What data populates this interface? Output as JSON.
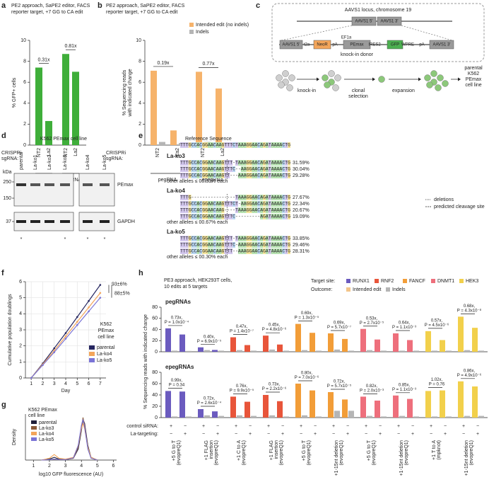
{
  "panel_letters": [
    "a",
    "b",
    "c",
    "d",
    "e",
    "f",
    "g",
    "h"
  ],
  "chart_data": [
    {
      "type": "bar",
      "title_lines": [
        "PE2 approach, SaPE2 editor, FACS",
        "reporter target, +7 GG to CA edit"
      ],
      "ylabel": "% GFP+ cells",
      "row_label": [
        "CRISPRi",
        "sgRNA:"
      ],
      "color": "#3fae3a",
      "ylim": [
        0,
        10
      ],
      "yticks": [
        0,
        2,
        4,
        6,
        8,
        10
      ],
      "groups": [
        {
          "name": "pegRNA",
          "categories": [
            "NT2",
            "La2"
          ],
          "values": [
            7.4,
            2.3
          ],
          "fold": "0.31x"
        },
        {
          "name": "epegRNA",
          "categories": [
            "NT2",
            "La2"
          ],
          "values": [
            8.7,
            7.0
          ],
          "fold": "0.81x"
        }
      ]
    },
    {
      "type": "grouped_bar",
      "title_lines": [
        "PE2 approach, SaPE2 editor, FACS",
        "reporter target, +7 GG to CA edit"
      ],
      "ylabel_lines": [
        "% Sequencing reads",
        "with indicated change"
      ],
      "row_label": [
        "CRISPRi",
        "sgRNA:"
      ],
      "ylim": [
        0,
        10
      ],
      "yticks": [
        0,
        2,
        4,
        6,
        8,
        10
      ],
      "series": [
        {
          "name": "Intended edit (no indels)",
          "color": "#f6b36b"
        },
        {
          "name": "Indels",
          "color": "#b5b5b5"
        }
      ],
      "groups": [
        {
          "name": "pegRNA",
          "categories": [
            "NT2",
            "La2"
          ],
          "series_values": [
            [
              7.1,
              1.4
            ],
            [
              0.3,
              0.2
            ]
          ],
          "fold": "0.19x"
        },
        {
          "name": "epegRNA",
          "categories": [
            "NT2",
            "La2"
          ],
          "series_values": [
            [
              7.0,
              5.4
            ],
            [
              0.3,
              0.2
            ]
          ],
          "fold": "0.77x"
        }
      ]
    },
    {
      "type": "line",
      "xlabel": "Day",
      "ylabel": "Cumulative population doublings",
      "x": [
        1,
        2,
        3,
        4,
        5,
        6,
        7
      ],
      "xlim": [
        0.5,
        7.5
      ],
      "xticks": [
        1,
        2,
        3,
        4,
        5,
        6,
        7
      ],
      "ylim": [
        0,
        6
      ],
      "yticks": [
        0,
        1,
        2,
        3,
        4,
        5,
        6
      ],
      "grid": true,
      "legend_title": [
        "K562",
        "PEmax",
        "cell line"
      ],
      "series": [
        {
          "name": "parental",
          "color": "#262660",
          "values": [
            0,
            0.9,
            1.85,
            2.8,
            3.8,
            4.8,
            5.8
          ]
        },
        {
          "name": "La-ko4",
          "color": "#f3a55a",
          "values": [
            0,
            0.85,
            1.7,
            2.6,
            3.5,
            4.4,
            5.3
          ]
        },
        {
          "name": "La-ko5",
          "color": "#7a74d6",
          "values": [
            0,
            0.8,
            1.6,
            2.45,
            3.3,
            4.15,
            5.0
          ]
        }
      ],
      "annotations": [
        "93±6%",
        "88±5%"
      ]
    },
    {
      "type": "density",
      "xlabel": "log10 GFP fluorescence (AU)",
      "ylabel": "Density",
      "legend_title": [
        "K562 PEmax",
        "cell line"
      ],
      "x": [
        1.5,
        2,
        2.3,
        2.6,
        3,
        3.5,
        3.8,
        4,
        4.1,
        4.2,
        4.4,
        4.6,
        5
      ],
      "xlim": [
        0.5,
        6.2
      ],
      "xticks": [
        1,
        2,
        3,
        4,
        5,
        6
      ],
      "ylim": [
        0,
        2.5
      ],
      "series": [
        {
          "name": "parental",
          "color": "#1f1f3a",
          "values": [
            0,
            0.05,
            0.15,
            0.05,
            0.02,
            0.1,
            0.6,
            1.6,
            2.2,
            2.0,
            0.8,
            0.15,
            0
          ]
        },
        {
          "name": "La-ko3",
          "color": "#8a5a3a",
          "values": [
            0,
            0.02,
            0.05,
            0.03,
            0.02,
            0.1,
            0.7,
            1.8,
            2.3,
            1.9,
            0.7,
            0.1,
            0
          ]
        },
        {
          "name": "La-ko4",
          "color": "#f3a55a",
          "values": [
            0,
            0.1,
            0.3,
            0.1,
            0.05,
            0.15,
            0.8,
            1.7,
            2.0,
            1.7,
            0.7,
            0.15,
            0
          ]
        },
        {
          "name": "La-ko5",
          "color": "#7a74d6",
          "values": [
            0,
            0.02,
            0.05,
            0.03,
            0.02,
            0.12,
            0.8,
            1.9,
            2.2,
            1.8,
            0.6,
            0.1,
            0
          ]
        }
      ]
    },
    {
      "type": "grouped_bar",
      "subtitle": "pegRNAs",
      "ylim": [
        0,
        80
      ],
      "yticks": [
        0,
        20,
        40,
        60,
        80
      ],
      "targets": [
        {
          "edits": [
            {
              "intended": [
                42,
                31
              ],
              "indels": [
                2,
                1.5
              ],
              "fold": "0.73x,",
              "p": "P = 1.0x10⁻⁴"
            },
            {
              "intended": [
                8,
                3.3
              ],
              "indels": [
                3,
                2
              ],
              "fold": "0.40x,",
              "p": "P = 6.9x10⁻⁵"
            }
          ]
        },
        {
          "edits": [
            {
              "intended": [
                26,
                12
              ],
              "indels": [
                3,
                2
              ],
              "fold": "0.47x,",
              "p": "P = 1.4x10⁻⁷"
            },
            {
              "intended": [
                29,
                13
              ],
              "indels": [
                4,
                2
              ],
              "fold": "0.45x,",
              "p": "P = 4.8x10⁻⁶"
            }
          ]
        },
        {
          "edits": [
            {
              "intended": [
                50,
                34
              ],
              "indels": [
                3,
                2
              ],
              "fold": "0.69x,",
              "p": "P = 1.3x10⁻⁵"
            },
            {
              "intended": [
                33,
                23
              ],
              "indels": [
                4,
                2
              ],
              "fold": "0.69x,",
              "p": "P = 5.7x10⁻⁷"
            }
          ]
        },
        {
          "edits": [
            {
              "intended": [
                41,
                22
              ],
              "indels": [
                3,
                2
              ],
              "fold": "0.53x,",
              "p": "P = 2.7x10⁻⁵"
            },
            {
              "intended": [
                33,
                21
              ],
              "indels": [
                2,
                2
              ],
              "fold": "0.64x,",
              "p": "P = 1.1x10⁻³"
            }
          ]
        },
        {
          "edits": [
            {
              "intended": [
                37,
                21
              ],
              "indels": [
                2,
                2
              ],
              "fold": "0.57x,",
              "p": "P = 4.5x10⁻⁶"
            },
            {
              "intended": [
                63,
                43
              ],
              "indels": [
                3,
                2
              ],
              "fold": "0.68x,",
              "p": "P = 4.3x10⁻⁸"
            }
          ]
        }
      ]
    },
    {
      "type": "grouped_bar",
      "subtitle": "epegRNAs",
      "ylim": [
        0,
        80
      ],
      "yticks": [
        0,
        20,
        40,
        60,
        80
      ],
      "targets": [
        {
          "edits": [
            {
              "intended": [
                47,
                46
              ],
              "indels": [
                2,
                2
              ],
              "fold": "0.99x,",
              "p": "P = 0.34"
            },
            {
              "intended": [
                15,
                11
              ],
              "indels": [
                4,
                3
              ],
              "fold": "0.72x,",
              "p": "P = 2.6x10⁻⁴"
            }
          ]
        },
        {
          "edits": [
            {
              "intended": [
                37,
                28
              ],
              "indels": [
                4,
                3
              ],
              "fold": "0.76x,",
              "p": "P = 9.9x10⁻⁵"
            },
            {
              "intended": [
                40,
                29
              ],
              "indels": [
                4,
                2
              ],
              "fold": "0.73x,",
              "p": "P = 2.2x10⁻⁶"
            }
          ]
        },
        {
          "edits": [
            {
              "intended": [
                60,
                48
              ],
              "indels": [
                4,
                2
              ],
              "fold": "0.80x,",
              "p": "P = 7.0x10⁻⁶"
            },
            {
              "intended": [
                45,
                32
              ],
              "indels": [
                12,
                12
              ],
              "fold": "0.72x,",
              "p": "P = 5.7x10⁻⁵"
            }
          ]
        },
        {
          "edits": [
            {
              "intended": [
                37,
                30
              ],
              "indels": [
                3,
                2
              ],
              "fold": "0.82x,",
              "p": "P = 2.0x10⁻³"
            },
            {
              "intended": [
                39,
                33
              ],
              "indels": [
                3,
                2
              ],
              "fold": "0.85x,",
              "p": "P = 1.1x10⁻³"
            }
          ]
        },
        {
          "edits": [
            {
              "intended": [
                47,
                48
              ],
              "indels": [
                2,
                2
              ],
              "fold": "1.02x,",
              "p": "P = 0.76"
            },
            {
              "intended": [
                64,
                55
              ],
              "indels": [
                3,
                3
              ],
              "fold": "0.86x,",
              "p": "P = 4.9x10⁻⁶"
            }
          ]
        }
      ]
    }
  ],
  "panel_h": {
    "title_lines": [
      "PE3 approach, HEK293T cells,",
      "10 edits at 5 targets"
    ],
    "ylabel": "% Sequencing reads with indicated change",
    "target_label": "Target site:",
    "targets": [
      {
        "name": "RUNX1",
        "color": "#6b5bbf"
      },
      {
        "name": "RNF2",
        "color": "#e8553a"
      },
      {
        "name": "FANCF",
        "color": "#f29d38"
      },
      {
        "name": "DNMT1",
        "color": "#ee6f7c"
      },
      {
        "name": "HEK3",
        "color": "#f2d04b"
      }
    ],
    "outcome_label": "Outcome:",
    "outcomes": [
      {
        "name": "Intended edit",
        "color": "#f3c58a"
      },
      {
        "name": "Indels",
        "color": "#b5b5b5"
      }
    ],
    "rows": [
      {
        "name": "control siRNA:",
        "signs": [
          "+",
          "−"
        ]
      },
      {
        "name": "La-targeting:",
        "signs": [
          "−",
          "+"
        ]
      }
    ],
    "edit_labels": [
      [
        "+5 G to T",
        "(evopreQ1)"
      ],
      [
        "+1 FLAG",
        "insertion",
        "(evopreQ1)"
      ],
      [
        "+1 C to A",
        "(evopreQ1)"
      ],
      [
        "+1 FLAG",
        "insertion",
        "(evopreQ1)"
      ],
      [
        "+5 G to T",
        "(evopreQ1)"
      ],
      [
        "+1-15nt deletion",
        "(evopreQ1)"
      ],
      [
        "+5 G to T",
        "(evopreQ1)"
      ],
      [
        "+1-15nt deletion",
        "(evopreQ1)"
      ],
      [
        "+1 T to A",
        "(mpknot)"
      ],
      [
        "+1-15nt deletion",
        "(evopreQ1)"
      ]
    ]
  },
  "diagram": {
    "locus_title": "AAVS1 locus, chromosome 19",
    "locus_arms": [
      "AAVS1 5'",
      "AAVS1 3'"
    ],
    "donor": [
      "AAVS1 5'",
      "t2a",
      "NeoR",
      "pA",
      "EF1a",
      "PEmax",
      "IRES2",
      "GFP",
      "WPRE",
      "pA",
      "AAVS1 3'"
    ],
    "donor_label": "knock-in donor",
    "steps": [
      [
        "knock-in"
      ],
      [
        "clonal",
        "selection"
      ],
      [
        "expansion"
      ]
    ],
    "result": [
      "parental",
      "K562",
      "PEmax",
      "cell line"
    ]
  },
  "blot": {
    "title": "K562 PEmax cell line",
    "kda_label": "kDa",
    "markers": [
      250,
      150,
      37
    ],
    "lanes": [
      {
        "name": "parental",
        "note": "*"
      },
      {
        "name": "La-ko1"
      },
      {
        "name": "La-ko2"
      },
      {
        "name": "La-ko3",
        "note": "*"
      },
      {
        "name": "La-ko4",
        "note": "*"
      },
      {
        "name": "La-ko5",
        "note": "*"
      }
    ],
    "proteins": [
      "PEmax",
      "GAPDH"
    ]
  },
  "alignment": {
    "reference_label": "Reference Sequence",
    "reference": "TTTGCCACGGAACAAGTTTCTAAAGGAACAGATAAAACTG",
    "clones": [
      {
        "name": "La-ko3",
        "alleles": [
          {
            "seq": "TTTGCCACGGAACAAGTTT-TAAAGGAACAGATAAAACTG",
            "pct": "31.59%"
          },
          {
            "seq": "TTTGCCACGGAACAAGTTTC--AAGGAACAGATAAAACTG",
            "pct": "30.04%"
          },
          {
            "seq": "TTTGCCACGGAACAAGTT---AAAGGAACAGATAAAACTG",
            "pct": "29.28%"
          }
        ],
        "other": "other alleles ≤ 00.33% each"
      },
      {
        "name": "La-ko4",
        "alleles": [
          {
            "seq": "TTTG----------------TAAAGGAACAGATAAAACTG",
            "pct": "27.67%"
          },
          {
            "seq": "TTTGCCACGGAACAAGTTTCT-AAGGAACAGATAAAACTG",
            "pct": "22.34%"
          },
          {
            "seq": "TTTGCCACGGAACAAG----TAAAGGAACAGATAAAACTG",
            "pct": "20.67%"
          },
          {
            "seq": "TTTGCCACGGAACAAGTTTC---------AGATAAAACTG",
            "pct": "19.09%"
          }
        ],
        "other": "other alleles ≤ 00.67% each"
      },
      {
        "name": "La-ko5",
        "alleles": [
          {
            "seq": "TTTGCCACGGAACAAGTTT-TAAAGGAACAGATAAAACTG",
            "pct": "33.85%"
          },
          {
            "seq": "TTTGCCACGGAACAAGTTTC-AAAGGAACAGATAAAACTG",
            "pct": "29.46%"
          },
          {
            "seq": "TTTGCCACGGAACAAGTTT--AAAGGAACAGATAAAACTG",
            "pct": "28.31%"
          }
        ],
        "other": "other alleles ≤ 00.30% each"
      }
    ],
    "legend": [
      "deletions",
      "predicted cleavage site"
    ]
  }
}
